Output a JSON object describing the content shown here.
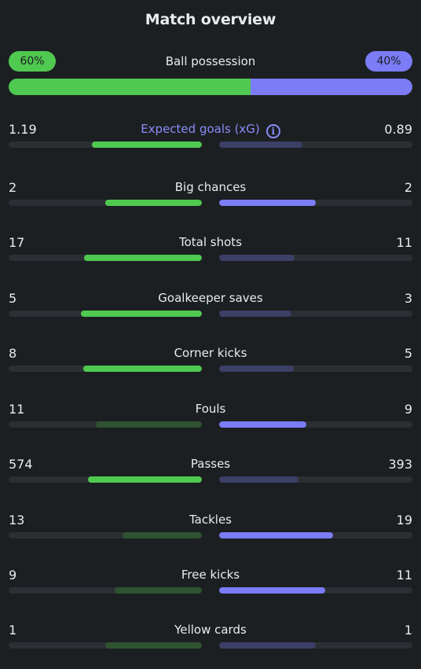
{
  "title": "Match overview",
  "colors": {
    "home_strong": "#4fc94f",
    "home_weak": "#2f5230",
    "away_strong": "#7b7cf6",
    "away_weak": "#3c3f66",
    "background": "#1b1f22"
  },
  "possession": {
    "label": "Ball possession",
    "home": "60%",
    "away": "40%",
    "home_fraction": 0.6
  },
  "stats": [
    {
      "name": "Expected goals (xG)",
      "home": "1.19",
      "away": "0.89",
      "home_fraction": 0.57,
      "away_fraction": 0.43,
      "leader": "home",
      "info_icon": "info-icon"
    },
    {
      "name": "Big chances",
      "home": "2",
      "away": "2",
      "home_fraction": 0.5,
      "away_fraction": 0.5,
      "leader": "both"
    },
    {
      "name": "Total shots",
      "home": "17",
      "away": "11",
      "home_fraction": 0.61,
      "away_fraction": 0.39,
      "leader": "home"
    },
    {
      "name": "Goalkeeper saves",
      "home": "5",
      "away": "3",
      "home_fraction": 0.625,
      "away_fraction": 0.375,
      "leader": "home"
    },
    {
      "name": "Corner kicks",
      "home": "8",
      "away": "5",
      "home_fraction": 0.615,
      "away_fraction": 0.385,
      "leader": "home"
    },
    {
      "name": "Fouls",
      "home": "11",
      "away": "9",
      "home_fraction": 0.55,
      "away_fraction": 0.45,
      "leader": "away"
    },
    {
      "name": "Passes",
      "home": "574",
      "away": "393",
      "home_fraction": 0.59,
      "away_fraction": 0.41,
      "leader": "home"
    },
    {
      "name": "Tackles",
      "home": "13",
      "away": "19",
      "home_fraction": 0.41,
      "away_fraction": 0.59,
      "leader": "away"
    },
    {
      "name": "Free kicks",
      "home": "9",
      "away": "11",
      "home_fraction": 0.45,
      "away_fraction": 0.55,
      "leader": "away"
    },
    {
      "name": "Yellow cards",
      "home": "1",
      "away": "1",
      "home_fraction": 0.5,
      "away_fraction": 0.5,
      "leader": "none"
    }
  ]
}
